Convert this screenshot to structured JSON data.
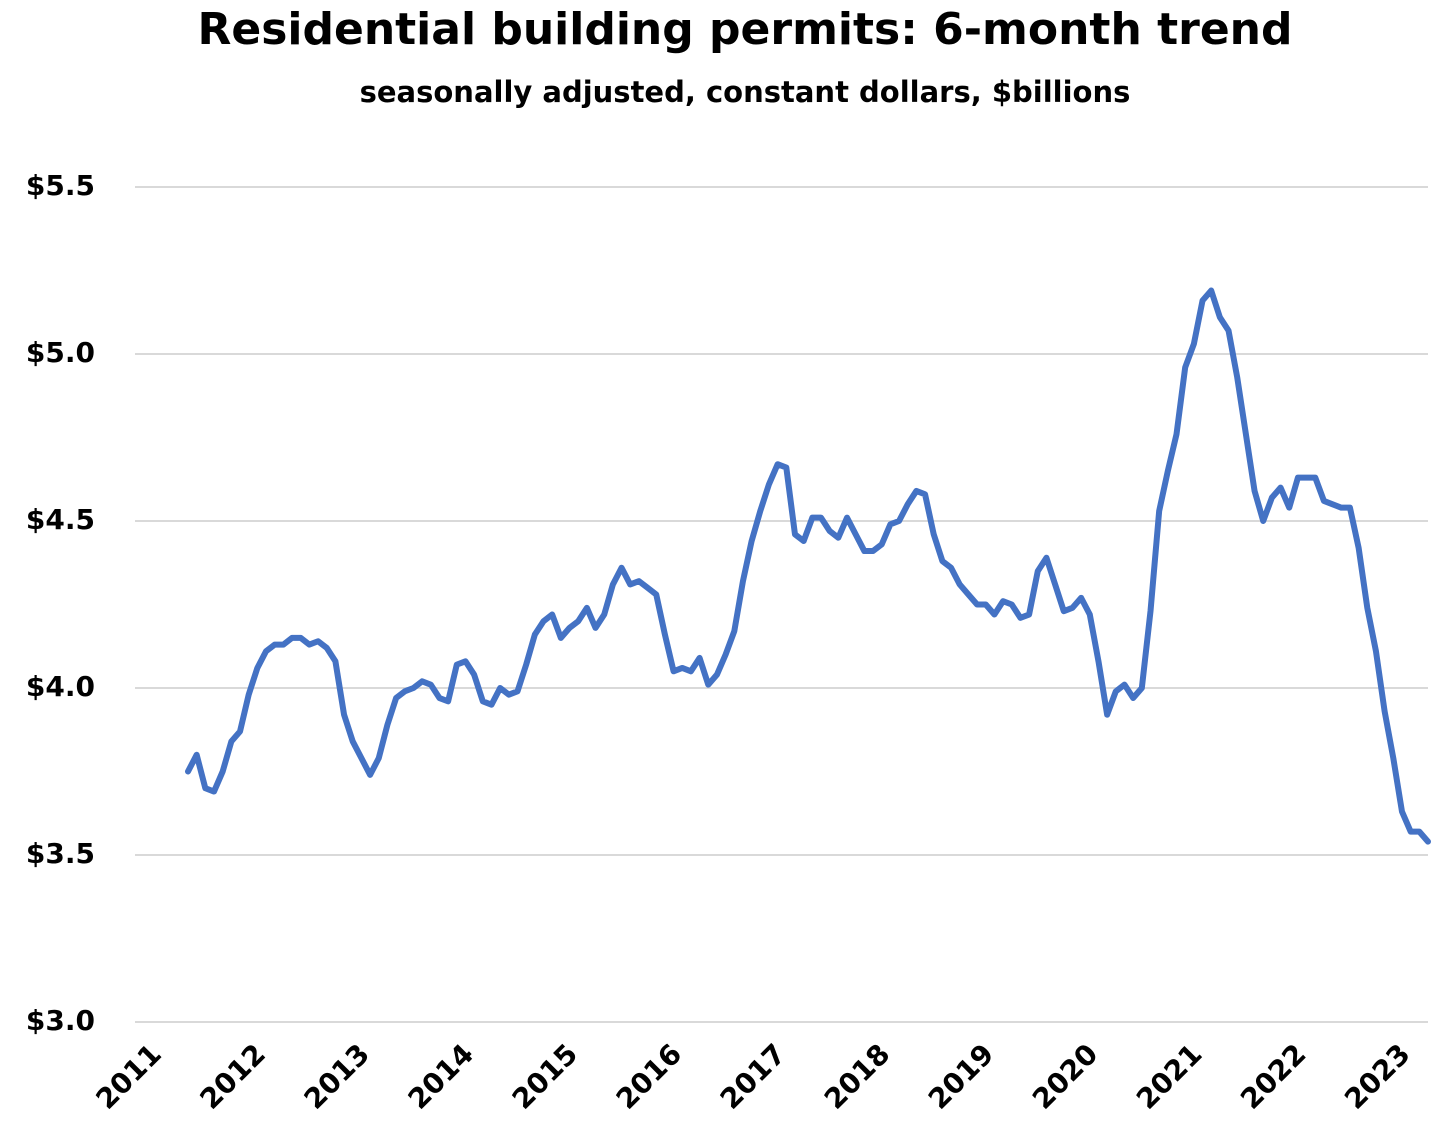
{
  "chart_data": {
    "type": "line",
    "title": "Residential building permits: 6-month trend",
    "subtitle": "seasonally adjusted, constant dollars, $billions",
    "categories": [
      "2011",
      null,
      null,
      null,
      null,
      null,
      null,
      null,
      null,
      null,
      null,
      null,
      "2012",
      null,
      null,
      null,
      null,
      null,
      null,
      null,
      null,
      null,
      null,
      null,
      "2013",
      null,
      null,
      null,
      null,
      null,
      null,
      null,
      null,
      null,
      null,
      null,
      "2014",
      null,
      null,
      null,
      null,
      null,
      null,
      null,
      null,
      null,
      null,
      null,
      "2015",
      null,
      null,
      null,
      null,
      null,
      null,
      null,
      null,
      null,
      null,
      null,
      "2016",
      null,
      null,
      null,
      null,
      null,
      null,
      null,
      null,
      null,
      null,
      null,
      "2017",
      null,
      null,
      null,
      null,
      null,
      null,
      null,
      null,
      null,
      null,
      null,
      "2018",
      null,
      null,
      null,
      null,
      null,
      null,
      null,
      null,
      null,
      null,
      null,
      "2019",
      null,
      null,
      null,
      null,
      null,
      null,
      null,
      null,
      null,
      null,
      null,
      "2020",
      null,
      null,
      null,
      null,
      null,
      null,
      null,
      null,
      null,
      null,
      null,
      "2021",
      null,
      null,
      null,
      null,
      null,
      null,
      null,
      null,
      null,
      null,
      null,
      "2022",
      null,
      null,
      null,
      null,
      null,
      null,
      null,
      null,
      null,
      null,
      null,
      "2023",
      null,
      null,
      null
    ],
    "series": [
      {
        "name": "Residential building permits",
        "color": "#4472c4",
        "values": [
          null,
          null,
          null,
          null,
          3.75,
          3.8,
          3.7,
          3.69,
          3.75,
          3.84,
          3.87,
          3.98,
          4.06,
          4.11,
          4.13,
          4.13,
          4.15,
          4.15,
          4.13,
          4.14,
          4.12,
          4.08,
          3.92,
          3.84,
          3.79,
          3.74,
          3.79,
          3.89,
          3.97,
          3.99,
          4.0,
          4.02,
          4.01,
          3.97,
          3.96,
          4.07,
          4.08,
          4.04,
          3.96,
          3.95,
          4.0,
          3.98,
          3.99,
          4.07,
          4.16,
          4.2,
          4.22,
          4.15,
          4.18,
          4.2,
          4.24,
          4.18,
          4.22,
          4.31,
          4.36,
          4.31,
          4.32,
          4.3,
          4.28,
          4.16,
          4.05,
          4.06,
          4.05,
          4.09,
          4.01,
          4.04,
          4.1,
          4.17,
          4.32,
          4.44,
          4.53,
          4.61,
          4.67,
          4.66,
          4.46,
          4.44,
          4.51,
          4.51,
          4.47,
          4.45,
          4.51,
          4.46,
          4.41,
          4.41,
          4.43,
          4.49,
          4.5,
          4.55,
          4.59,
          4.58,
          4.46,
          4.38,
          4.36,
          4.31,
          4.28,
          4.25,
          4.25,
          4.22,
          4.26,
          4.25,
          4.21,
          4.22,
          4.35,
          4.39,
          4.31,
          4.23,
          4.24,
          4.27,
          4.22,
          4.08,
          3.92,
          3.99,
          4.01,
          3.97,
          4.0,
          4.23,
          4.53,
          4.65,
          4.76,
          4.96,
          5.03,
          5.16,
          5.19,
          5.11,
          5.07,
          4.93,
          4.76,
          4.59,
          4.5,
          4.57,
          4.6,
          4.54,
          4.63,
          4.63,
          4.63,
          4.56,
          4.55,
          4.54,
          4.54,
          4.42,
          4.24,
          4.11,
          3.93,
          3.79,
          3.63,
          3.57,
          3.57,
          3.54
        ]
      }
    ],
    "ylim": [
      3.0,
      5.5
    ],
    "yticks": [
      {
        "value": 3.0,
        "label": "$3.0"
      },
      {
        "value": 3.5,
        "label": "$3.5"
      },
      {
        "value": 4.0,
        "label": "$4.0"
      },
      {
        "value": 4.5,
        "label": "$4.5"
      },
      {
        "value": 5.0,
        "label": "$5.0"
      },
      {
        "value": 5.5,
        "label": "$5.5"
      }
    ],
    "grid": true
  }
}
